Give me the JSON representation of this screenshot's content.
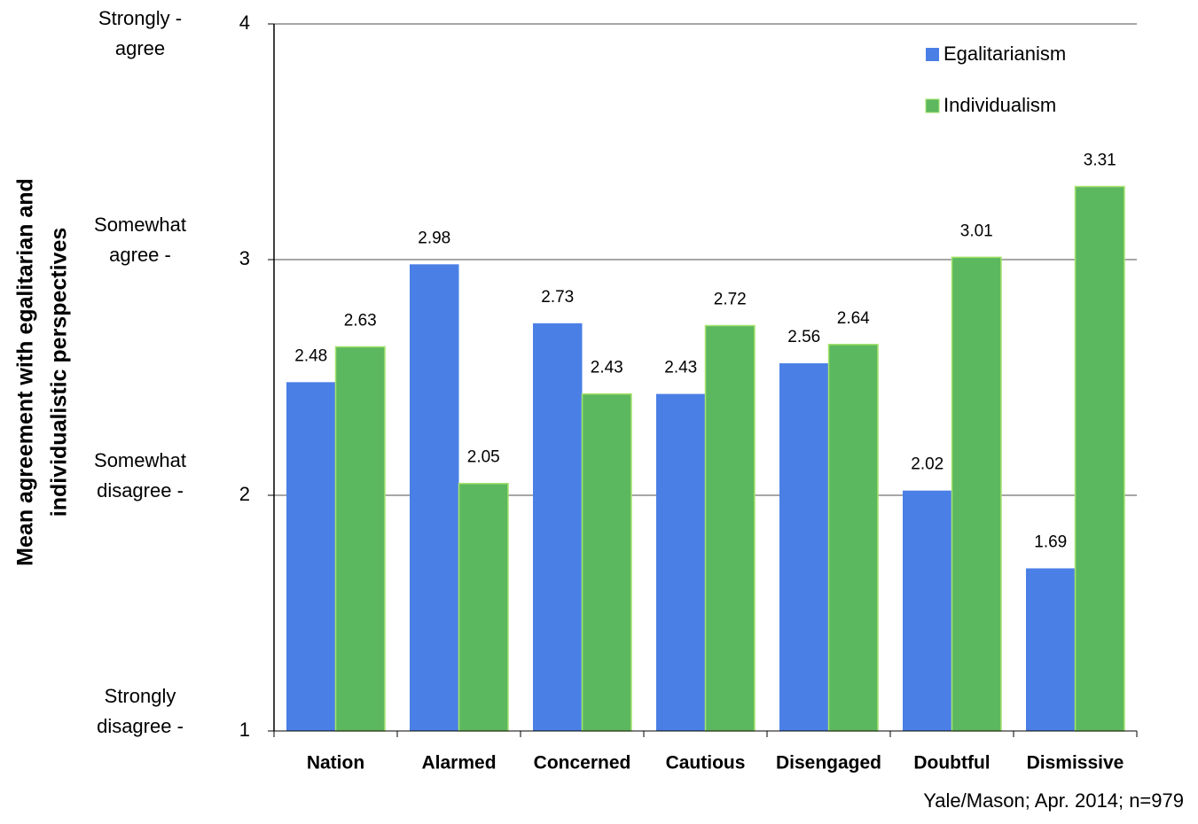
{
  "chart_data": {
    "type": "bar",
    "y_label": [
      "Mean agreement with  egalitarian  and",
      "individualistic perspectives"
    ],
    "categories": [
      "Nation",
      "Alarmed",
      "Concerned",
      "Cautious",
      "Disengaged",
      "Doubtful",
      "Dismissive"
    ],
    "series": [
      {
        "name": "Egalitarianism",
        "color": "#4a7fe6",
        "values": [
          2.48,
          2.98,
          2.73,
          2.43,
          2.56,
          2.02,
          1.69
        ]
      },
      {
        "name": "Individualism",
        "color": "#5cb85f",
        "values": [
          2.63,
          2.05,
          2.43,
          2.72,
          2.64,
          3.01,
          3.31
        ]
      }
    ],
    "ylim": [
      1,
      4
    ],
    "yticks": [
      1,
      2,
      3,
      4
    ],
    "grid": true,
    "legend": "top-right",
    "scale_labels": [
      {
        "value": 4,
        "lines": [
          "Strongly  -",
          "agree"
        ]
      },
      {
        "value": 3,
        "lines": [
          "Somewhat",
          "agree -"
        ]
      },
      {
        "value": 2,
        "lines": [
          "Somewhat",
          "disagree -"
        ]
      },
      {
        "value": 1,
        "lines": [
          "Strongly",
          "disagree -"
        ]
      }
    ],
    "source": "Yale/Mason;  Apr. 2014; n=979"
  }
}
